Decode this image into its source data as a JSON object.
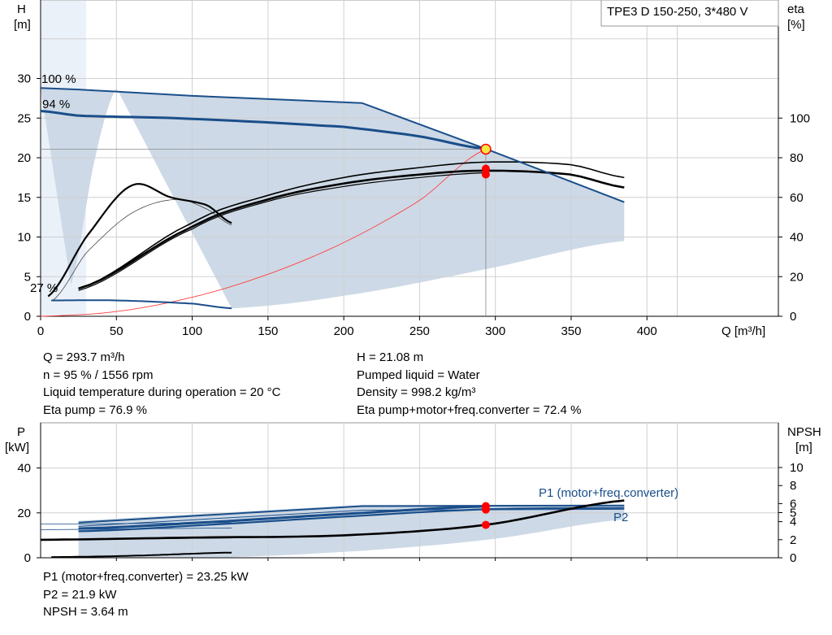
{
  "pump_label": "TPE3 D 150-250, 3*480 V",
  "accent_color": "#1a4e8a",
  "band_color": "#cdd9e6",
  "point_color": "#ff0000",
  "duty_point_color": "#f5e642",
  "upper_chart": {
    "y_left_label": [
      "H",
      "[m]"
    ],
    "y_right_label": [
      "eta",
      "[%]"
    ],
    "x_label": "Q [m³/h]",
    "x_ticks": [
      "0",
      "50",
      "100",
      "150",
      "200",
      "250",
      "300",
      "350",
      "400"
    ],
    "y_left_ticks": [
      "0",
      "5",
      "10",
      "15",
      "20",
      "25",
      "30"
    ],
    "y_right_ticks": [
      "0",
      "20",
      "40",
      "60",
      "80",
      "100"
    ],
    "speed_labels": [
      "100 %",
      "94 %",
      "27 %"
    ]
  },
  "info_upper_left": [
    "Q = 293.7 m³/h",
    "n = 95 % / 1556 rpm",
    "Liquid temperature during operation = 20 °C",
    "Eta pump = 76.9 %"
  ],
  "info_upper_right": [
    "H = 21.08 m",
    "Pumped liquid = Water",
    "Density = 998.2 kg/m³",
    "Eta pump+motor+freq.converter = 72.4 %"
  ],
  "lower_chart": {
    "y_left_label": [
      "P",
      "[kW]"
    ],
    "y_right_label": [
      "NPSH",
      "[m]"
    ],
    "y_left_ticks": [
      "0",
      "20",
      "40"
    ],
    "y_right_ticks": [
      "0",
      "2",
      "4",
      "5",
      "6",
      "8",
      "10"
    ],
    "series_labels": [
      "P1 (motor+freq.converter)",
      "P2"
    ]
  },
  "info_lower": [
    "P1 (motor+freq.converter) = 23.25 kW",
    "P2 = 21.9 kW",
    "NPSH = 3.64 m"
  ],
  "chart_data": [
    {
      "type": "line",
      "title": "",
      "annotation": "TPE3 D 150-250, 3*480 V",
      "xlabel": "Q [m³/h]",
      "ylabel": "H [m]",
      "y2label": "eta [%]",
      "xlim": [
        0,
        420
      ],
      "ylim": [
        0,
        35
      ],
      "y2lim": [
        0,
        140
      ],
      "grid": true,
      "series": [
        {
          "name": "100 %",
          "axis": "H",
          "x": [
            0,
            25,
            100,
            212,
            294,
            385
          ],
          "y": [
            28.8,
            28.6,
            27.8,
            26.9,
            21.1,
            14.4
          ]
        },
        {
          "name": "94 %",
          "axis": "H",
          "x": [
            0,
            25,
            100,
            200,
            250,
            294
          ],
          "y": [
            25.9,
            25.3,
            24.9,
            23.9,
            22.7,
            21.1
          ]
        },
        {
          "name": "27 %",
          "axis": "H",
          "x": [
            7,
            50,
            100,
            126
          ],
          "y": [
            2.0,
            2.0,
            1.6,
            1.0
          ]
        },
        {
          "axis": "H",
          "x": [
            0,
            50,
            100,
            150,
            200,
            250,
            294
          ],
          "y": [
            0,
            0.6,
            2.4,
            5.3,
            9.3,
            14.6,
            21.1
          ]
        },
        {
          "axis": "eta",
          "x": [
            25,
            100,
            150,
            200,
            250,
            294,
            350,
            385
          ],
          "y": [
            14,
            45,
            60,
            69,
            74,
            76.9,
            75,
            64
          ]
        },
        {
          "axis": "eta",
          "x": [
            25,
            100,
            150,
            200,
            250,
            294,
            350,
            385
          ],
          "y": [
            13,
            43,
            58,
            66,
            70.5,
            72.4,
            70.5,
            64
          ]
        },
        {
          "axis": "eta",
          "x": [
            8,
            30,
            60,
            90,
            110,
            126
          ],
          "y": [
            8,
            32,
            52,
            59,
            54,
            46
          ]
        },
        {
          "axis": "eta",
          "x": [
            5,
            30,
            60,
            86,
            110,
            126
          ],
          "y": [
            10,
            40,
            66,
            77,
            72,
            60
          ]
        }
      ],
      "duty_point": {
        "x": 293.7,
        "h": 21.08,
        "eta_pump": 76.9,
        "eta_total": 72.4
      }
    },
    {
      "type": "line",
      "title": "",
      "xlabel": "Q [m³/h]",
      "ylabel": "P [kW]",
      "y2label": "NPSH [m]",
      "xlim": [
        0,
        420
      ],
      "ylim": [
        0,
        50
      ],
      "y2lim": [
        0,
        11
      ],
      "grid": true,
      "series": [
        {
          "name": "P1 (motor+freq.converter)",
          "axis": "P",
          "x": [
            25,
            100,
            212,
            294,
            385
          ],
          "y": [
            15.7,
            18.5,
            23.0,
            23.25,
            23.3
          ]
        },
        {
          "name": "P2",
          "axis": "P",
          "x": [
            25,
            100,
            212,
            294,
            385
          ],
          "y": [
            13.0,
            16.0,
            20.8,
            21.9,
            22.0
          ]
        },
        {
          "axis": "P",
          "x": [
            0,
            100,
            200,
            294,
            385
          ],
          "y": [
            8.0,
            9.0,
            10.0,
            14.7,
            25.5
          ]
        },
        {
          "axis": "P",
          "x": [
            7,
            60,
            126
          ],
          "y": [
            0.3,
            0.9,
            2.3
          ]
        }
      ],
      "points": [
        {
          "x": 293.7,
          "p": 23.25
        },
        {
          "x": 293.7,
          "p": 21.9
        },
        {
          "x": 293.7,
          "npsh": 3.64
        }
      ]
    }
  ]
}
